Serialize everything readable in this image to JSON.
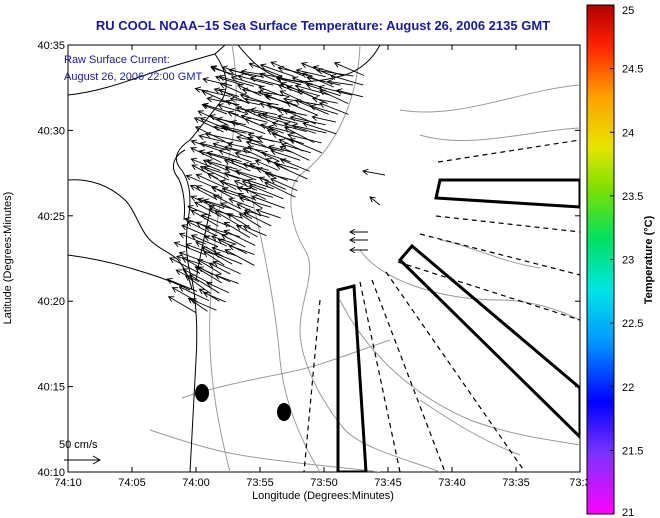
{
  "title": "RU COOL  NOAA–15  Sea Surface Temperature:  August 26, 2006 2135 GMT",
  "raw_current_label": "Raw Surface Current:",
  "raw_current_time": "August 26, 2006 22:00 GMT",
  "scale_label": "50 cm/s",
  "xlabel": "Longitude (Degrees:Minutes)",
  "ylabel": "Latitude (Degrees:Minutes)",
  "colorbar_label": "Temperature (°C)",
  "x_ticks": [
    "74:10",
    "74:05",
    "74:00",
    "73:55",
    "73:50",
    "73:45",
    "73:40",
    "73:35",
    "73:3"
  ],
  "y_ticks": [
    "40:35",
    "40:30",
    "40:25",
    "40:20",
    "40:15",
    "40:10"
  ],
  "colorbar_ticks": [
    "25",
    "24.5",
    "24",
    "23.5",
    "23",
    "22.5",
    "22",
    "21.5",
    "21"
  ],
  "colorbar_range": [
    21,
    25
  ],
  "colors": {
    "title": "#1a1a9a",
    "land": "#ffffff",
    "contour": "#9a9a9a",
    "arrows": "#000000"
  }
}
